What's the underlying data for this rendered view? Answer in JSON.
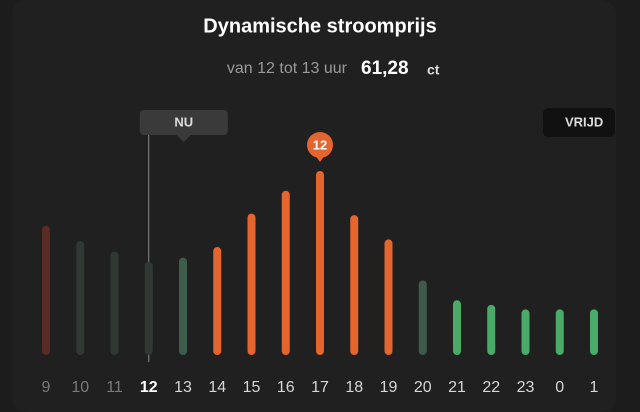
{
  "chart_data": {
    "type": "bar",
    "title": "Dynamische stroomprijs",
    "subtitle": "van 12 tot 13 uur",
    "price": "61,28",
    "unit": "ct",
    "categories": [
      "9",
      "10",
      "11",
      "12",
      "13",
      "14",
      "15",
      "16",
      "17",
      "18",
      "19",
      "20",
      "21",
      "22",
      "23",
      "0",
      "1"
    ],
    "values": [
      85,
      75,
      68,
      61.28,
      64,
      71,
      93,
      108,
      121,
      92,
      76,
      49,
      36,
      33,
      30,
      30,
      30
    ],
    "colors": [
      "#5a2c23",
      "#2f3833",
      "#2f3833",
      "#2f3833",
      "#3e5c4c",
      "#e4652d",
      "#e4652d",
      "#e4652d",
      "#e4652d",
      "#e4652d",
      "#e4652d",
      "#3f5a4c",
      "#4aaa67",
      "#4aaa67",
      "#4aaa67",
      "#4aaa67",
      "#4aaa67"
    ],
    "current_index": 3,
    "current_label": "NU",
    "peak_index": 8,
    "peak_label": "12",
    "next_day_label": "VRIJD"
  }
}
